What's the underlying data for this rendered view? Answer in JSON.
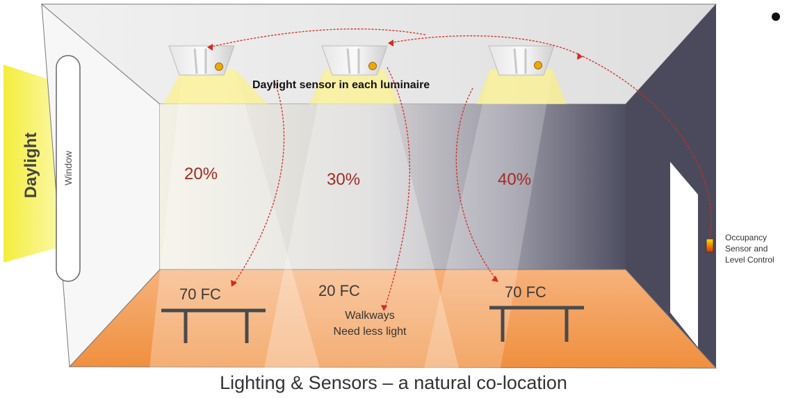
{
  "labels": {
    "daylight": "Daylight",
    "window": "Window",
    "sensor_label": "Daylight sensor in each luminaire",
    "zone_percentages": [
      "20%",
      "30%",
      "40%"
    ],
    "floor_levels": [
      "70 FC",
      "20 FC",
      "70 FC"
    ],
    "walkway_note_line1": "Walkways",
    "walkway_note_line2": "Need less light",
    "occupancy_line1": "Occupancy",
    "occupancy_line2": "Sensor and",
    "occupancy_line3": "Level Control",
    "caption": "Lighting & Sensors – a natural co-location"
  },
  "colors": {
    "daylight_yellow": "#f4ee3c",
    "floor_orange": "#f5a867",
    "back_wall_dark": "#4f4f62",
    "percent_text": "#a52a20",
    "arrow_red": "#d42a1e",
    "sensor_dot": "#f0a800"
  },
  "icons": [
    "luminaire-icon",
    "sensor-dot-icon",
    "table-icon",
    "occupancy-sensor-icon",
    "bullet-icon"
  ]
}
